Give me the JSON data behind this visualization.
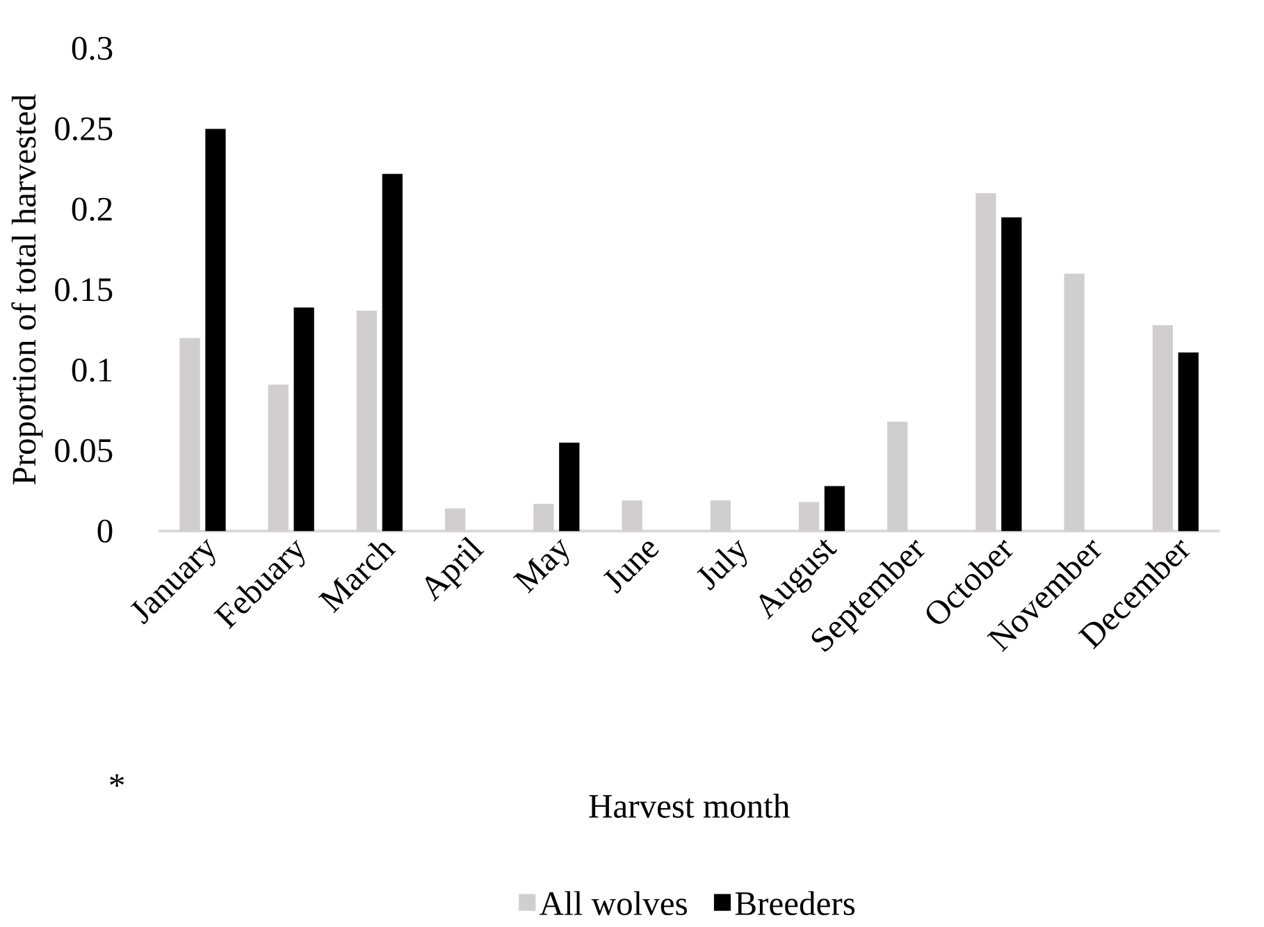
{
  "chart_data": {
    "type": "bar",
    "xlabel": "Harvest month",
    "ylabel": "Proportion of total harvested",
    "categories": [
      "January",
      "Febuary",
      "March",
      "April",
      "May",
      "June",
      "July",
      "August",
      "September",
      "October",
      "November",
      "December"
    ],
    "series": [
      {
        "name": "All wolves",
        "color": "#d0cece",
        "values": [
          0.12,
          0.091,
          0.137,
          0.014,
          0.017,
          0.019,
          0.019,
          0.018,
          0.068,
          0.21,
          0.16,
          0.128
        ]
      },
      {
        "name": "Breeders",
        "color": "#000000",
        "values": [
          0.25,
          0.139,
          0.222,
          0,
          0.055,
          0,
          0,
          0.028,
          0,
          0.195,
          0,
          0.111
        ]
      }
    ],
    "ylim": [
      0,
      0.3
    ],
    "yticks": [
      0,
      0.05,
      0.1,
      0.15,
      0.2,
      0.25,
      0.3
    ],
    "legend": "bottom",
    "annotations": [
      "*"
    ]
  }
}
